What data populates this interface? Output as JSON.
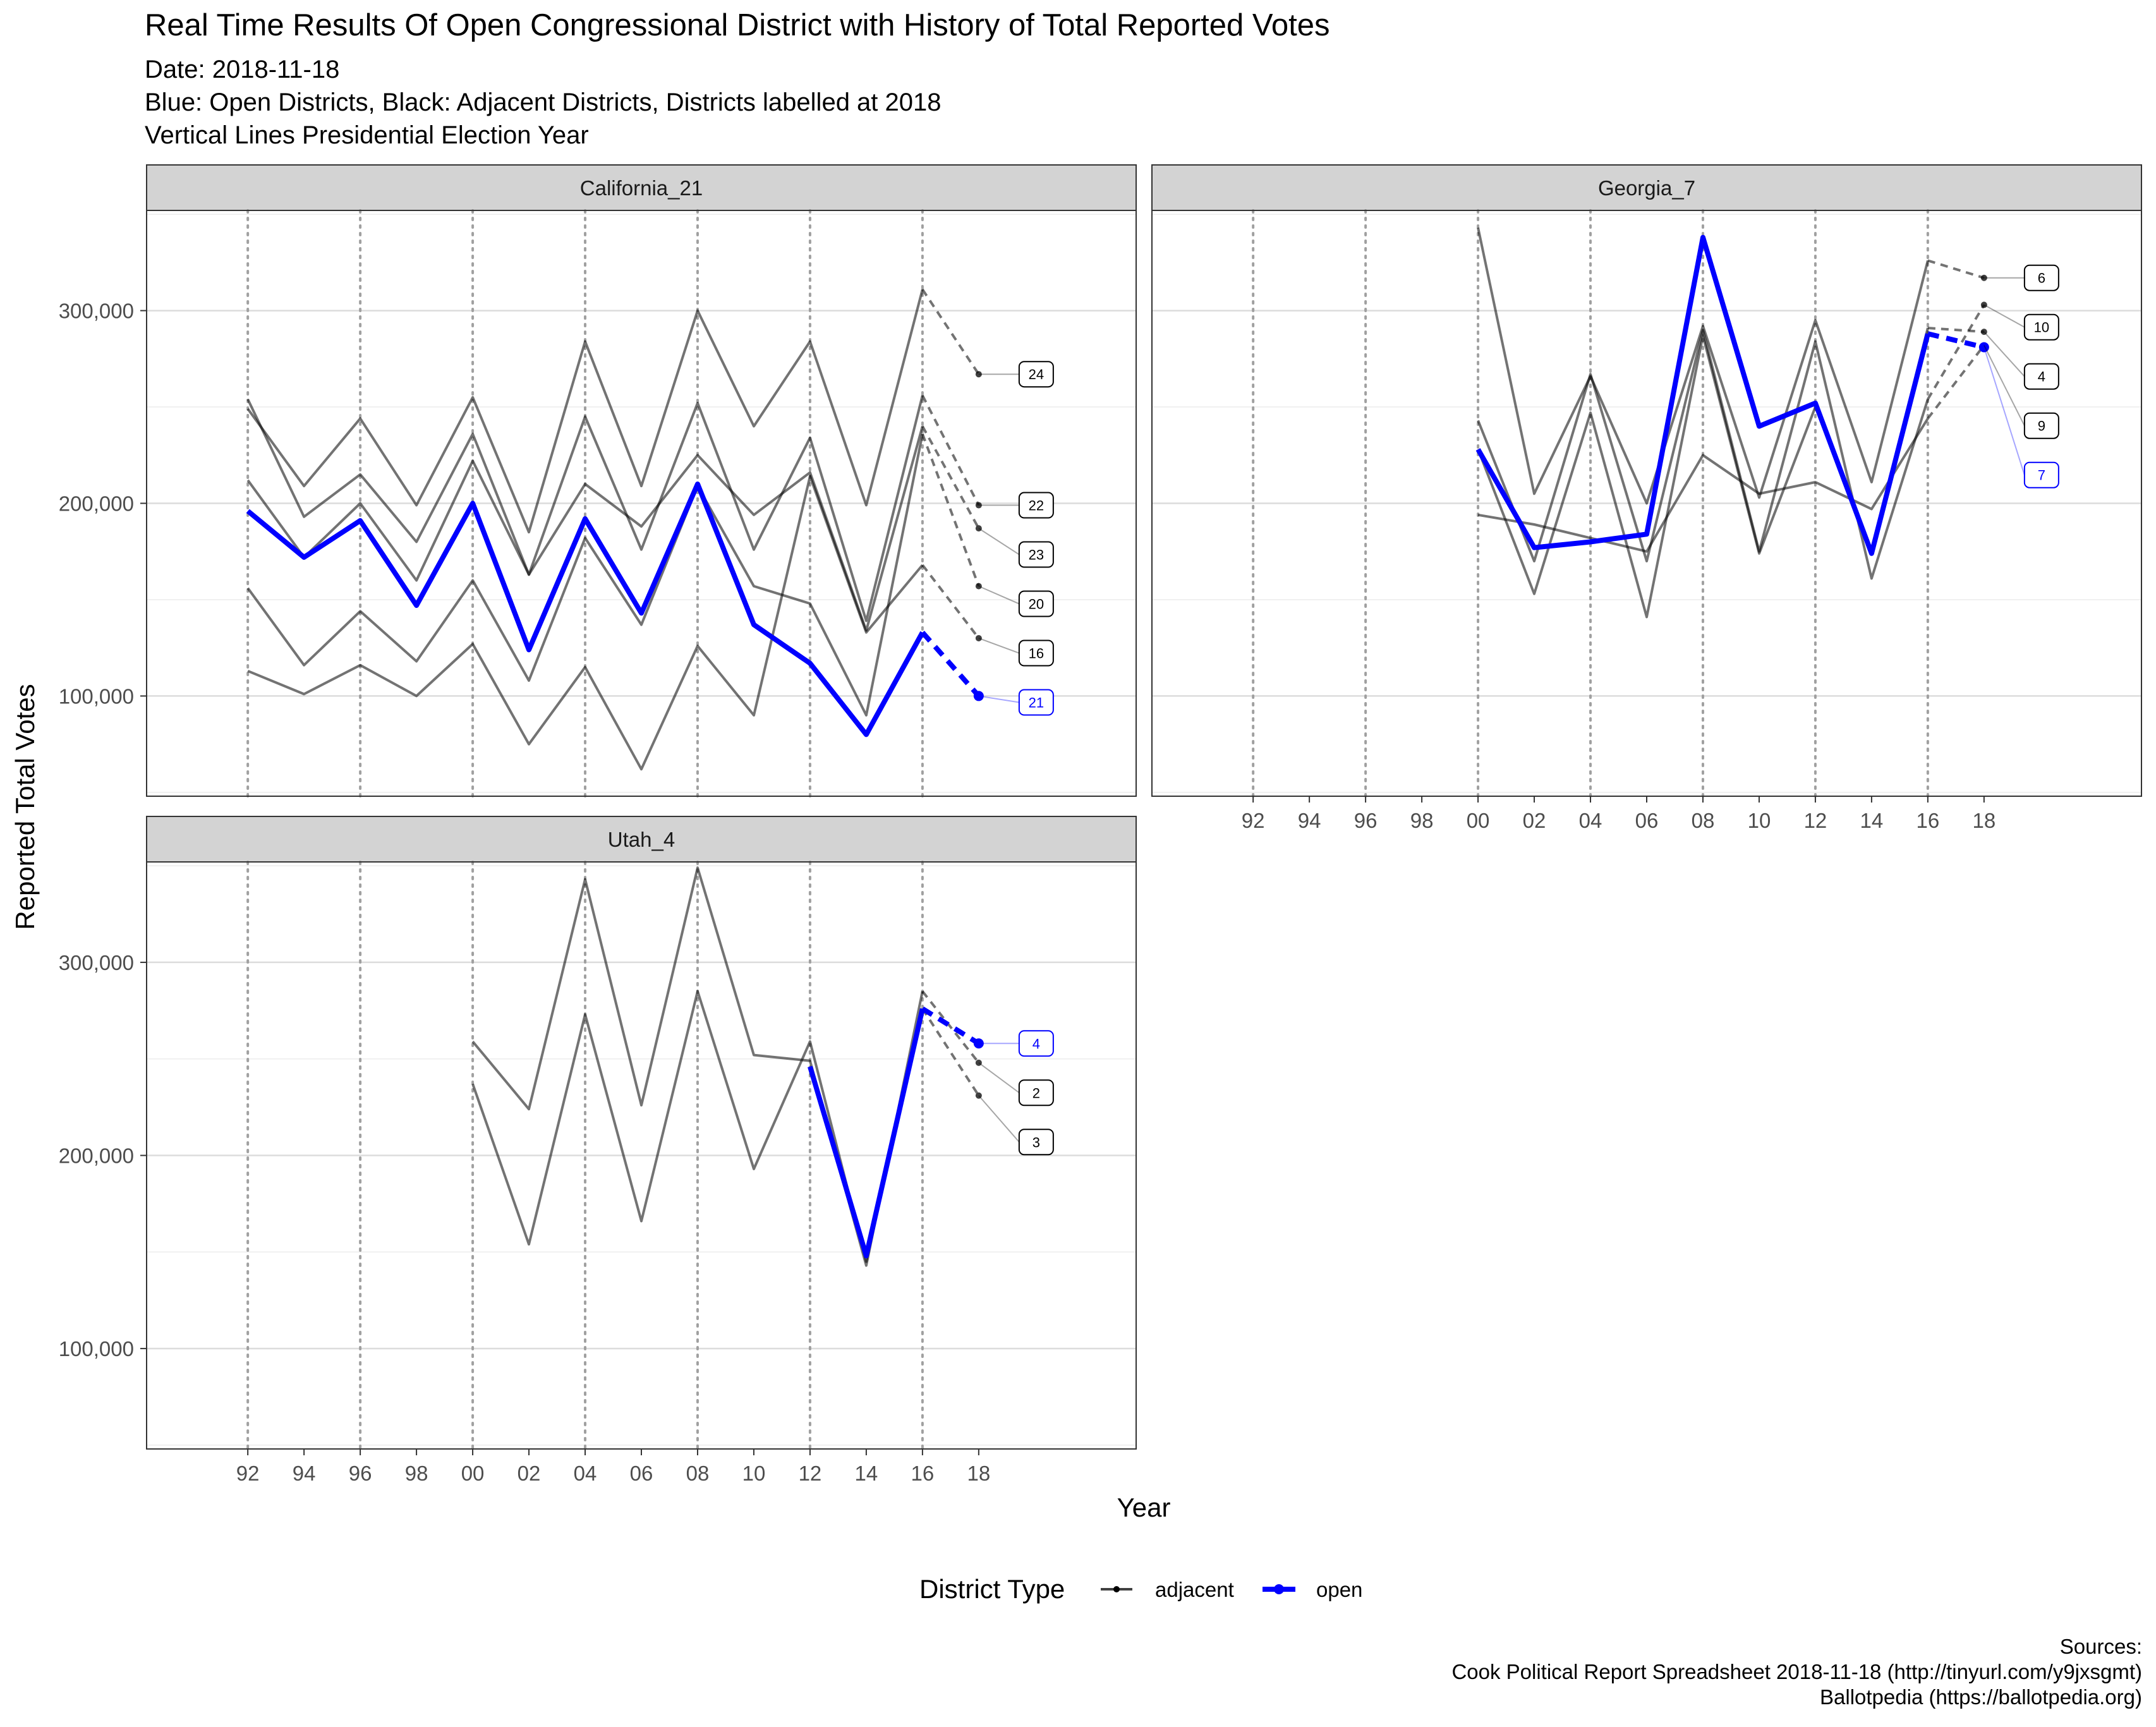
{
  "title": "Real Time Results Of Open Congressional District with History of Total Reported Votes",
  "subtitle_lines": [
    "Date: 2018-11-18",
    "Blue: Open Districts, Black: Adjacent Districts, Districts labelled at 2018",
    "Vertical Lines Presidential Election Year"
  ],
  "caption_lines": [
    "Sources:",
    "Cook Political Report Spreadsheet 2018-11-18 (http://tinyurl.com/y9jxsgmt)",
    "Ballotpedia (https://ballotpedia.org)"
  ],
  "colors": {
    "open": "#0000ff",
    "adjacent": "#000000",
    "strip_bg": "#d3d3d3",
    "grid_major": "#dcdcdc",
    "grid_minor": "#ececec",
    "vline": "#a0a0a0"
  },
  "chart_data": {
    "type": "line",
    "xlabel": "Year",
    "ylabel": "Reported Total Votes",
    "x_ticks": [
      1992,
      1994,
      1996,
      1998,
      2000,
      2002,
      2004,
      2006,
      2008,
      2010,
      2012,
      2014,
      2016,
      2018
    ],
    "x_tick_labels": [
      "92",
      "94",
      "96",
      "98",
      "00",
      "02",
      "04",
      "06",
      "08",
      "10",
      "12",
      "14",
      "16",
      "18"
    ],
    "xlim": [
      1988.4,
      2023.6
    ],
    "ylim": [
      48000,
      352000
    ],
    "y_ticks": [
      100000,
      200000,
      300000
    ],
    "y_tick_labels": [
      "100,000",
      "200,000",
      "300,000"
    ],
    "presidential_years": [
      1992,
      1996,
      2000,
      2004,
      2008,
      2012,
      2016
    ],
    "grid": true,
    "legend": {
      "title": "District Type",
      "position": "bottom",
      "items": [
        {
          "label": "adjacent",
          "type": "adjacent"
        },
        {
          "label": "open",
          "type": "open"
        }
      ]
    },
    "panels": [
      {
        "name": "California_21",
        "series": [
          {
            "label": "24",
            "type": "adjacent",
            "x": [
              1992,
              1994,
              1996,
              1998,
              2000,
              2002,
              2004,
              2006,
              2008,
              2010,
              2012,
              2014,
              2016
            ],
            "y": [
              249000,
              209000,
              244000,
              199000,
              255000,
              185000,
              284000,
              209000,
              300000,
              240000,
              284000,
              199000,
              311000
            ],
            "final": [
              2018,
              267000
            ]
          },
          {
            "label": "22",
            "type": "adjacent",
            "x": [
              1992,
              1994,
              1996,
              1998,
              2000,
              2002,
              2004,
              2006,
              2008,
              2010,
              2012,
              2014,
              2016
            ],
            "y": [
              254000,
              193000,
              215000,
              180000,
              236000,
              163000,
              245000,
              176000,
              252000,
              176000,
              234000,
              139000,
              256000
            ],
            "final": [
              2018,
              199000
            ]
          },
          {
            "label": "23",
            "type": "adjacent",
            "x": [
              1992,
              1994,
              1996,
              1998,
              2000,
              2002,
              2004,
              2006,
              2008,
              2010,
              2012,
              2014,
              2016
            ],
            "y": [
              212000,
              172000,
              200000,
              160000,
              222000,
              163000,
              210000,
              188000,
              225000,
              194000,
              216000,
              134000,
              240000
            ],
            "final": [
              2018,
              187000
            ]
          },
          {
            "label": "20",
            "type": "adjacent",
            "x": [
              1992,
              1994,
              1996,
              1998,
              2000,
              2002,
              2004,
              2006,
              2008,
              2010,
              2012,
              2014,
              2016
            ],
            "y": [
              156000,
              116000,
              144000,
              118000,
              160000,
              108000,
              182000,
              137000,
              209000,
              157000,
              148000,
              90000,
              236000
            ],
            "final": [
              2018,
              157000
            ]
          },
          {
            "label": "16",
            "type": "adjacent",
            "x": [
              1992,
              1994,
              1996,
              1998,
              2000,
              2002,
              2004,
              2006,
              2008,
              2010,
              2012,
              2014,
              2016
            ],
            "y": [
              113000,
              101000,
              116000,
              100000,
              127000,
              75000,
              115000,
              62000,
              126000,
              90000,
              214000,
              133000,
              168000
            ],
            "final": [
              2018,
              130000
            ]
          },
          {
            "label": "21",
            "type": "open",
            "x": [
              1992,
              1994,
              1996,
              1998,
              2000,
              2002,
              2004,
              2006,
              2008,
              2010,
              2012,
              2014,
              2016
            ],
            "y": [
              196000,
              172000,
              191000,
              147000,
              200000,
              124000,
              192000,
              143000,
              210000,
              137000,
              117000,
              80000,
              133000
            ],
            "final": [
              2018,
              100000
            ]
          }
        ]
      },
      {
        "name": "Georgia_7",
        "series": [
          {
            "label": "6",
            "type": "adjacent",
            "x": [
              2000,
              2002,
              2004,
              2006,
              2008,
              2010,
              2012,
              2014,
              2016
            ],
            "y": [
              343000,
              205000,
              266000,
              200000,
              292000,
              203000,
              295000,
              211000,
              326000
            ],
            "final": [
              2018,
              317000
            ]
          },
          {
            "label": "10",
            "type": "adjacent",
            "x": [
              2000,
              2002,
              2004,
              2006,
              2008,
              2010,
              2012,
              2014,
              2016
            ],
            "y": [
              243000,
              170000,
              267000,
              170000,
              290000,
              175000,
              284000,
              161000,
              254000
            ],
            "final": [
              2018,
              303000
            ]
          },
          {
            "label": "4",
            "type": "adjacent",
            "x": [
              2000,
              2002,
              2004,
              2006,
              2008,
              2010,
              2012,
              2014,
              2016
            ],
            "y": [
              228000,
              153000,
              247000,
              141000,
              287000,
              174000,
              250000,
              175000,
              291000
            ],
            "final": [
              2018,
              289000
            ]
          },
          {
            "label": "9",
            "type": "adjacent",
            "x": [
              2000,
              2002,
              2004,
              2006,
              2008,
              2010,
              2012,
              2014,
              2016
            ],
            "y": [
              194000,
              189000,
              182000,
              175000,
              225000,
              205000,
              211000,
              197000,
              244000
            ],
            "final": [
              2018,
              282000
            ]
          },
          {
            "label": "7",
            "type": "open",
            "x": [
              2000,
              2002,
              2004,
              2006,
              2008,
              2010,
              2012,
              2014,
              2016
            ],
            "y": [
              228000,
              177000,
              180000,
              184000,
              338000,
              240000,
              252000,
              174000,
              288000
            ],
            "final": [
              2018,
              281000
            ]
          }
        ]
      },
      {
        "name": "Utah_4",
        "series": [
          {
            "label": "2",
            "type": "adjacent",
            "x": [
              2000,
              2002,
              2004,
              2006,
              2008,
              2010,
              2012,
              2014,
              2016
            ],
            "y": [
              259000,
              224000,
              343000,
              226000,
              349000,
              252000,
              249000,
              143000,
              285000
            ],
            "final": [
              2018,
              248000
            ]
          },
          {
            "label": "3",
            "type": "adjacent",
            "x": [
              2000,
              2002,
              2004,
              2006,
              2008,
              2010,
              2012,
              2014,
              2016
            ],
            "y": [
              237000,
              154000,
              273000,
              166000,
              285000,
              193000,
              259000,
              145000,
              276000
            ],
            "final": [
              2018,
              231000
            ]
          },
          {
            "label": "4",
            "type": "open",
            "x": [
              2012,
              2014,
              2016
            ],
            "y": [
              246000,
              148000,
              276000
            ],
            "final": [
              2018,
              258000
            ]
          }
        ]
      }
    ]
  }
}
